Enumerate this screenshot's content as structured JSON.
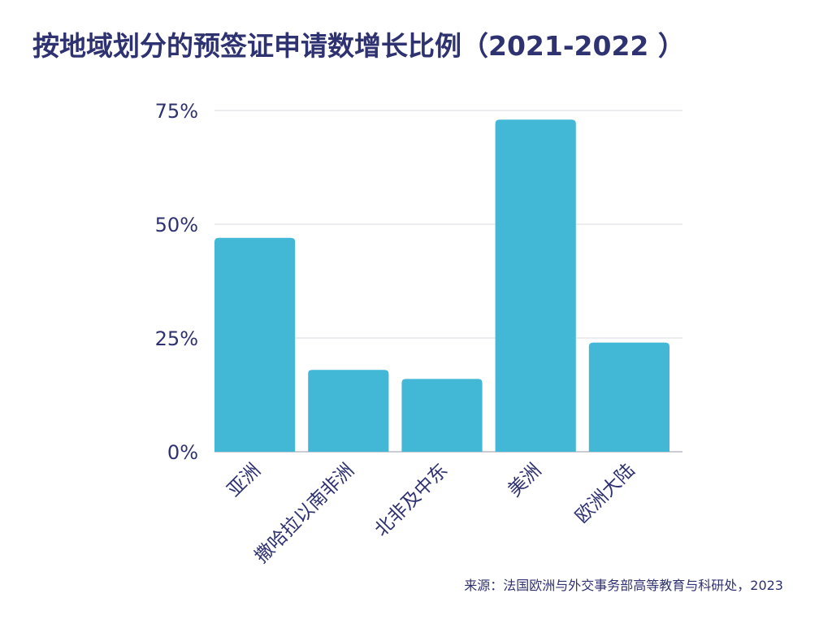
{
  "chart_data": {
    "type": "bar",
    "title": "按地域划分的预签证申请数增长比例（2021-2022 ）",
    "categories": [
      "亚洲",
      "撒哈拉以南非洲",
      "北非及中东",
      "美洲",
      "欧洲大陆"
    ],
    "values": [
      47,
      18,
      16,
      73,
      24
    ],
    "value_unit": "%",
    "ylim": [
      0,
      75
    ],
    "yticks": [
      0,
      25,
      50,
      75
    ],
    "ytick_labels": [
      "0%",
      "25%",
      "50%",
      "75%"
    ],
    "xlabel": "",
    "ylabel": "",
    "grid": true,
    "legend": "none",
    "source": "来源：法国欧洲与外交事务部高等教育与科研处，2023",
    "colors": {
      "bar": "#42b7d6",
      "text": "#2f3270",
      "grid": "#d9dbe3",
      "axis": "#b8bac6"
    }
  }
}
